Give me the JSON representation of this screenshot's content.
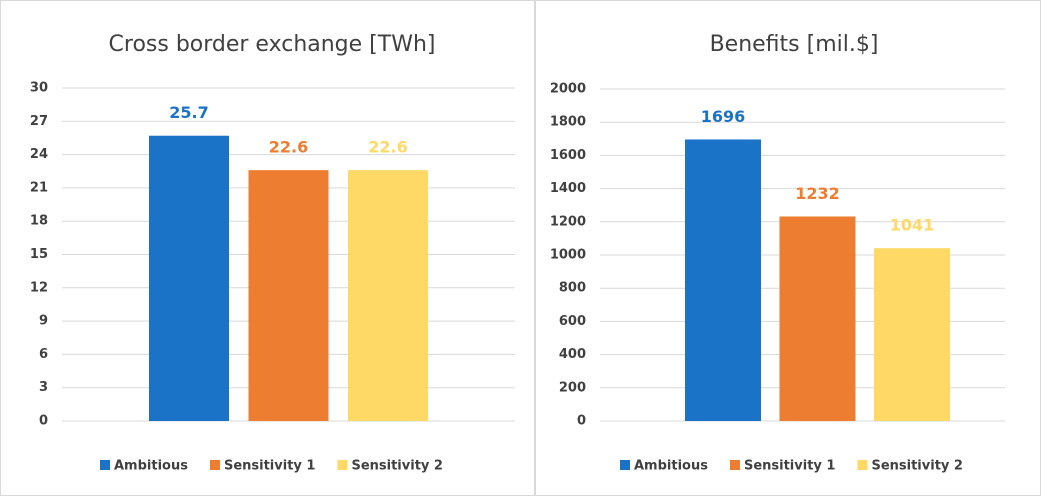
{
  "chart_data": [
    {
      "type": "bar",
      "title": "Cross border exchange [TWh]",
      "series": [
        {
          "name": "Ambitious",
          "color": "#1a73c7",
          "values": [
            25.7
          ]
        },
        {
          "name": "Sensitivity 1",
          "color": "#ed7d31",
          "values": [
            22.6
          ]
        },
        {
          "name": "Sensitivity 2",
          "color": "#ffd966",
          "values": [
            22.6
          ]
        }
      ],
      "ylim": [
        0,
        30
      ],
      "yticks": [
        0,
        3,
        6,
        9,
        12,
        15,
        18,
        21,
        24,
        27,
        30
      ],
      "grid": true,
      "legend": "bottom"
    },
    {
      "type": "bar",
      "title": "Benefits [mil.$]",
      "series": [
        {
          "name": "Ambitious",
          "color": "#1a73c7",
          "values": [
            1696
          ]
        },
        {
          "name": "Sensitivity 1",
          "color": "#ed7d31",
          "values": [
            1232
          ]
        },
        {
          "name": "Sensitivity 2",
          "color": "#ffd966",
          "values": [
            1041
          ]
        }
      ],
      "ylim": [
        0,
        2000
      ],
      "yticks": [
        0,
        200,
        400,
        600,
        800,
        1000,
        1200,
        1400,
        1600,
        1800,
        2000
      ],
      "grid": true,
      "legend": "bottom"
    }
  ]
}
